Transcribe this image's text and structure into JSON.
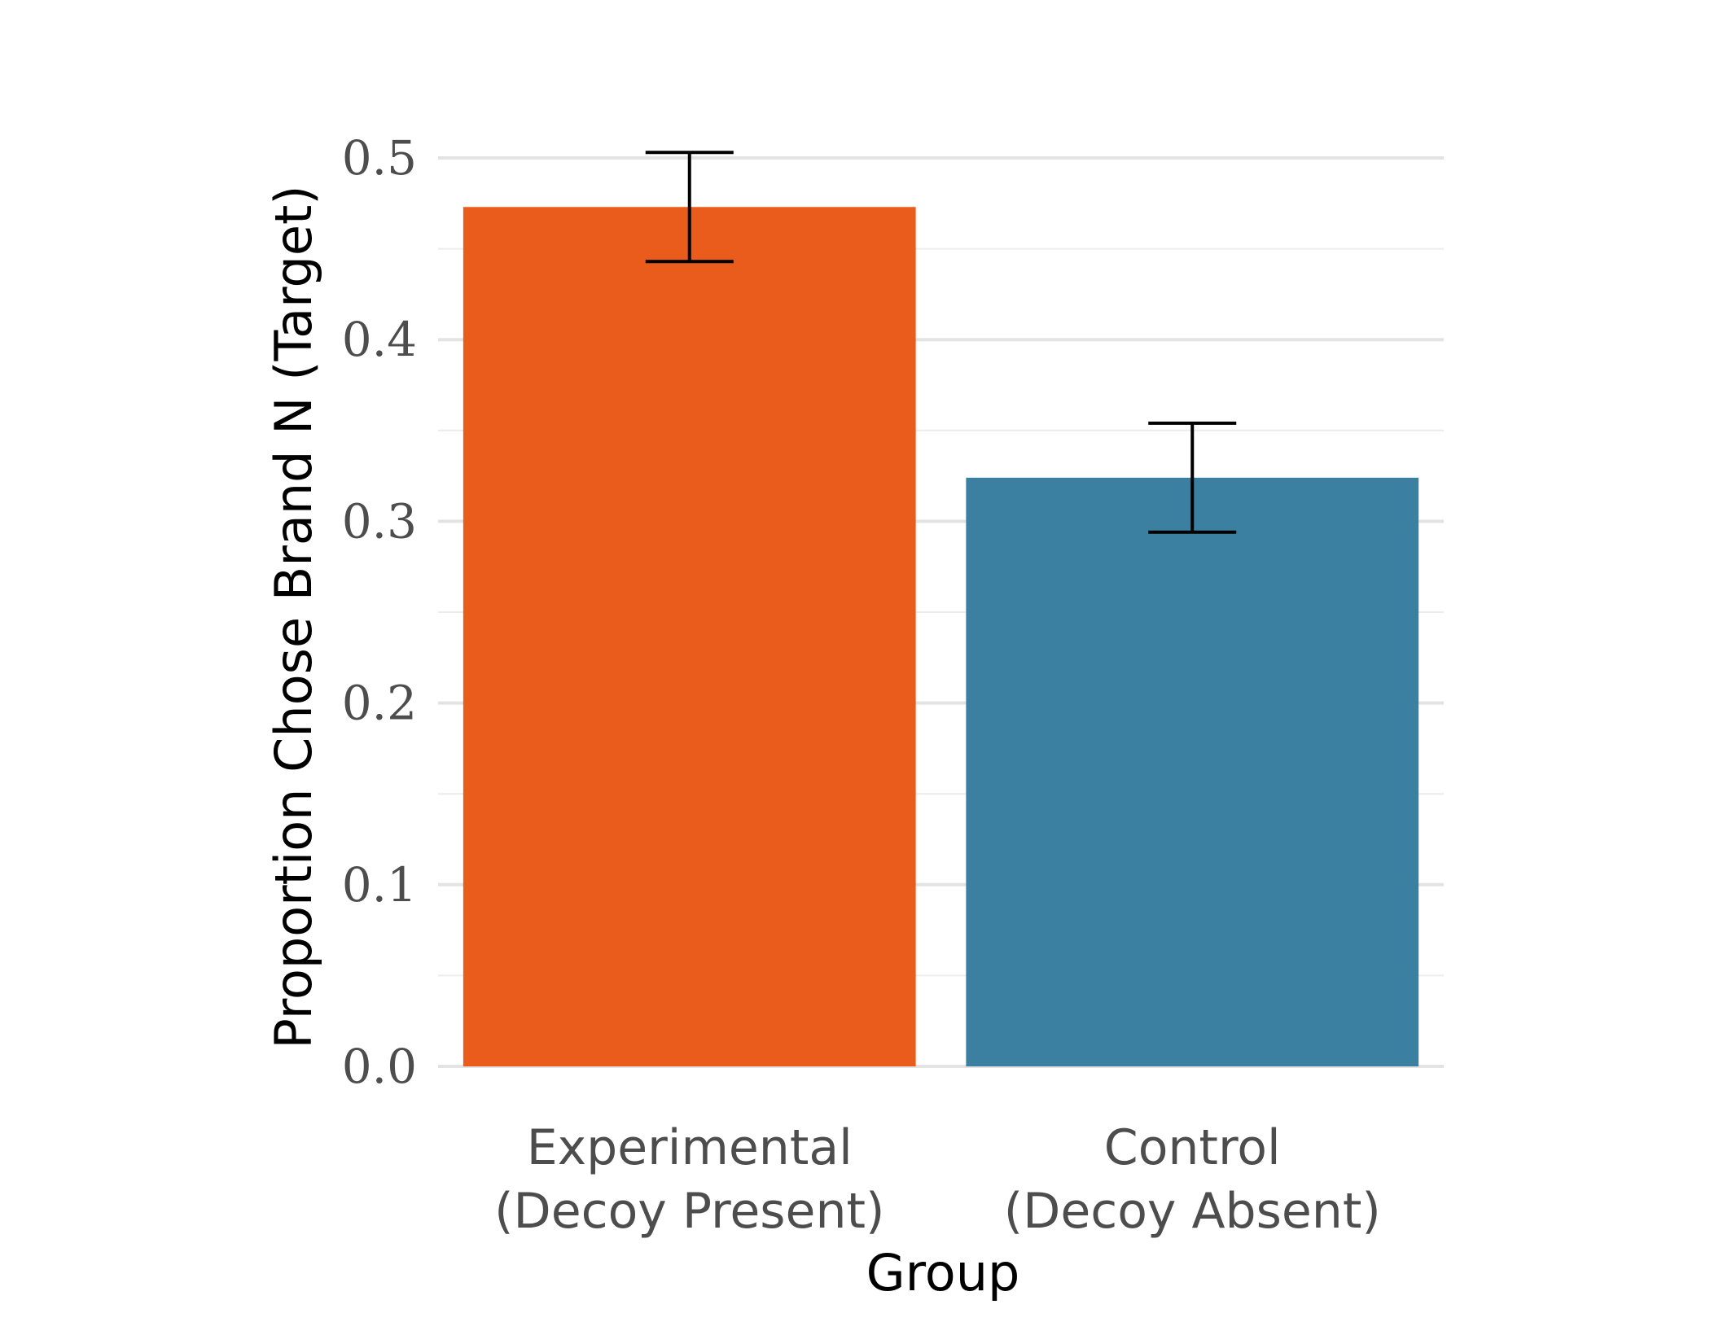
{
  "chart_data": {
    "type": "bar",
    "title": "",
    "xlabel": "Group",
    "ylabel": "Proportion Chose Brand N (Target)",
    "categories": [
      [
        "Experimental",
        "(Decoy Present)"
      ],
      [
        "Control",
        "(Decoy Absent)"
      ]
    ],
    "values": [
      0.473,
      0.324
    ],
    "error_bars": [
      {
        "low": 0.443,
        "high": 0.503
      },
      {
        "low": 0.294,
        "high": 0.354
      }
    ],
    "colors": [
      "#E95C1C",
      "#3B80A0"
    ],
    "ylim": [
      0,
      0.5
    ],
    "yticks": [
      "0.0",
      "0.1",
      "0.2",
      "0.3",
      "0.4",
      "0.5"
    ],
    "ytick_values": [
      0,
      0.1,
      0.2,
      0.3,
      0.4,
      0.5
    ],
    "grid": true,
    "legend": "none"
  }
}
